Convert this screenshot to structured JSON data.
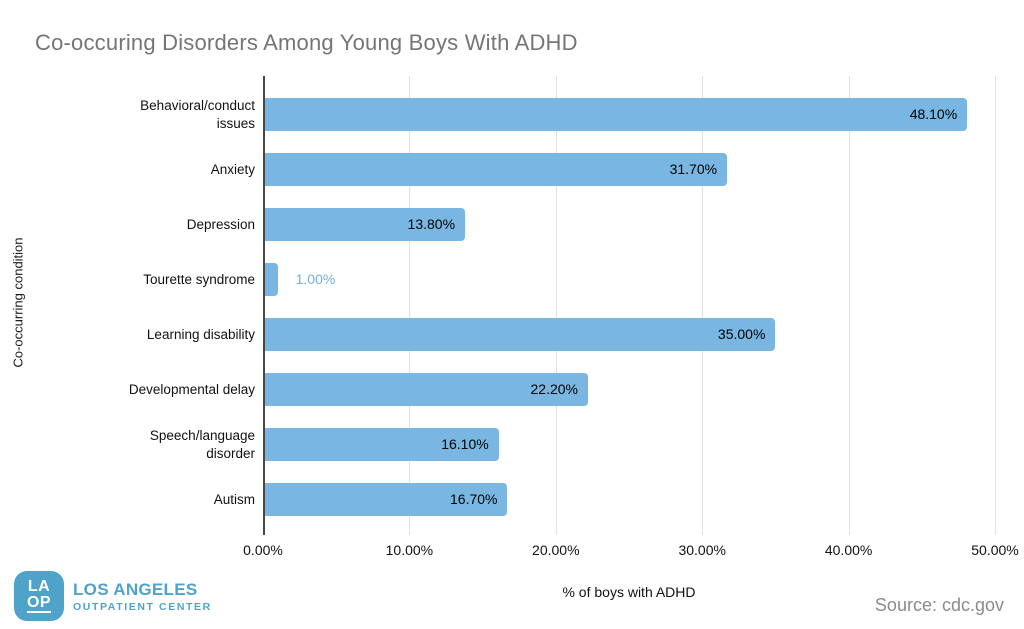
{
  "title": "Co-occuring Disorders Among Young Boys With ADHD",
  "source": "Source: cdc.gov",
  "chart_data": {
    "type": "bar",
    "orientation": "horizontal",
    "title": "Co-occuring Disorders Among Young Boys With ADHD",
    "categories": [
      "Behavioral/conduct issues",
      "Anxiety",
      "Depression",
      "Tourette syndrome",
      "Learning disability",
      "Developmental delay",
      "Speech/language disorder",
      "Autism"
    ],
    "values": [
      48.1,
      31.7,
      13.8,
      1.0,
      35.0,
      22.2,
      16.1,
      16.7
    ],
    "value_labels": [
      "48.10%",
      "31.70%",
      "13.80%",
      "1.00%",
      "35.00%",
      "22.20%",
      "16.10%",
      "16.70%"
    ],
    "xlabel": "% of boys with ADHD",
    "ylabel": "Co-occurring condition",
    "xlim": [
      0,
      50
    ],
    "x_ticks": [
      "0.00%",
      "10.00%",
      "20.00%",
      "30.00%",
      "40.00%",
      "50.00%"
    ],
    "grid": true,
    "legend": "none",
    "bar_color": "#79b6e1",
    "outside_label_color": "#6cb0e0",
    "outside_label_threshold": 5
  },
  "colors": {
    "title_gray": "#757575",
    "grid_gray": "#e2e2e2",
    "axis_dark": "#474747",
    "source_gray": "#8b8b8b",
    "brand_blue": "#4fa3c9"
  },
  "logo": {
    "monogram_line1": "LA",
    "monogram_line2": "OP",
    "name": "LOS ANGELES",
    "subtitle": "OUTPATIENT CENTER"
  }
}
